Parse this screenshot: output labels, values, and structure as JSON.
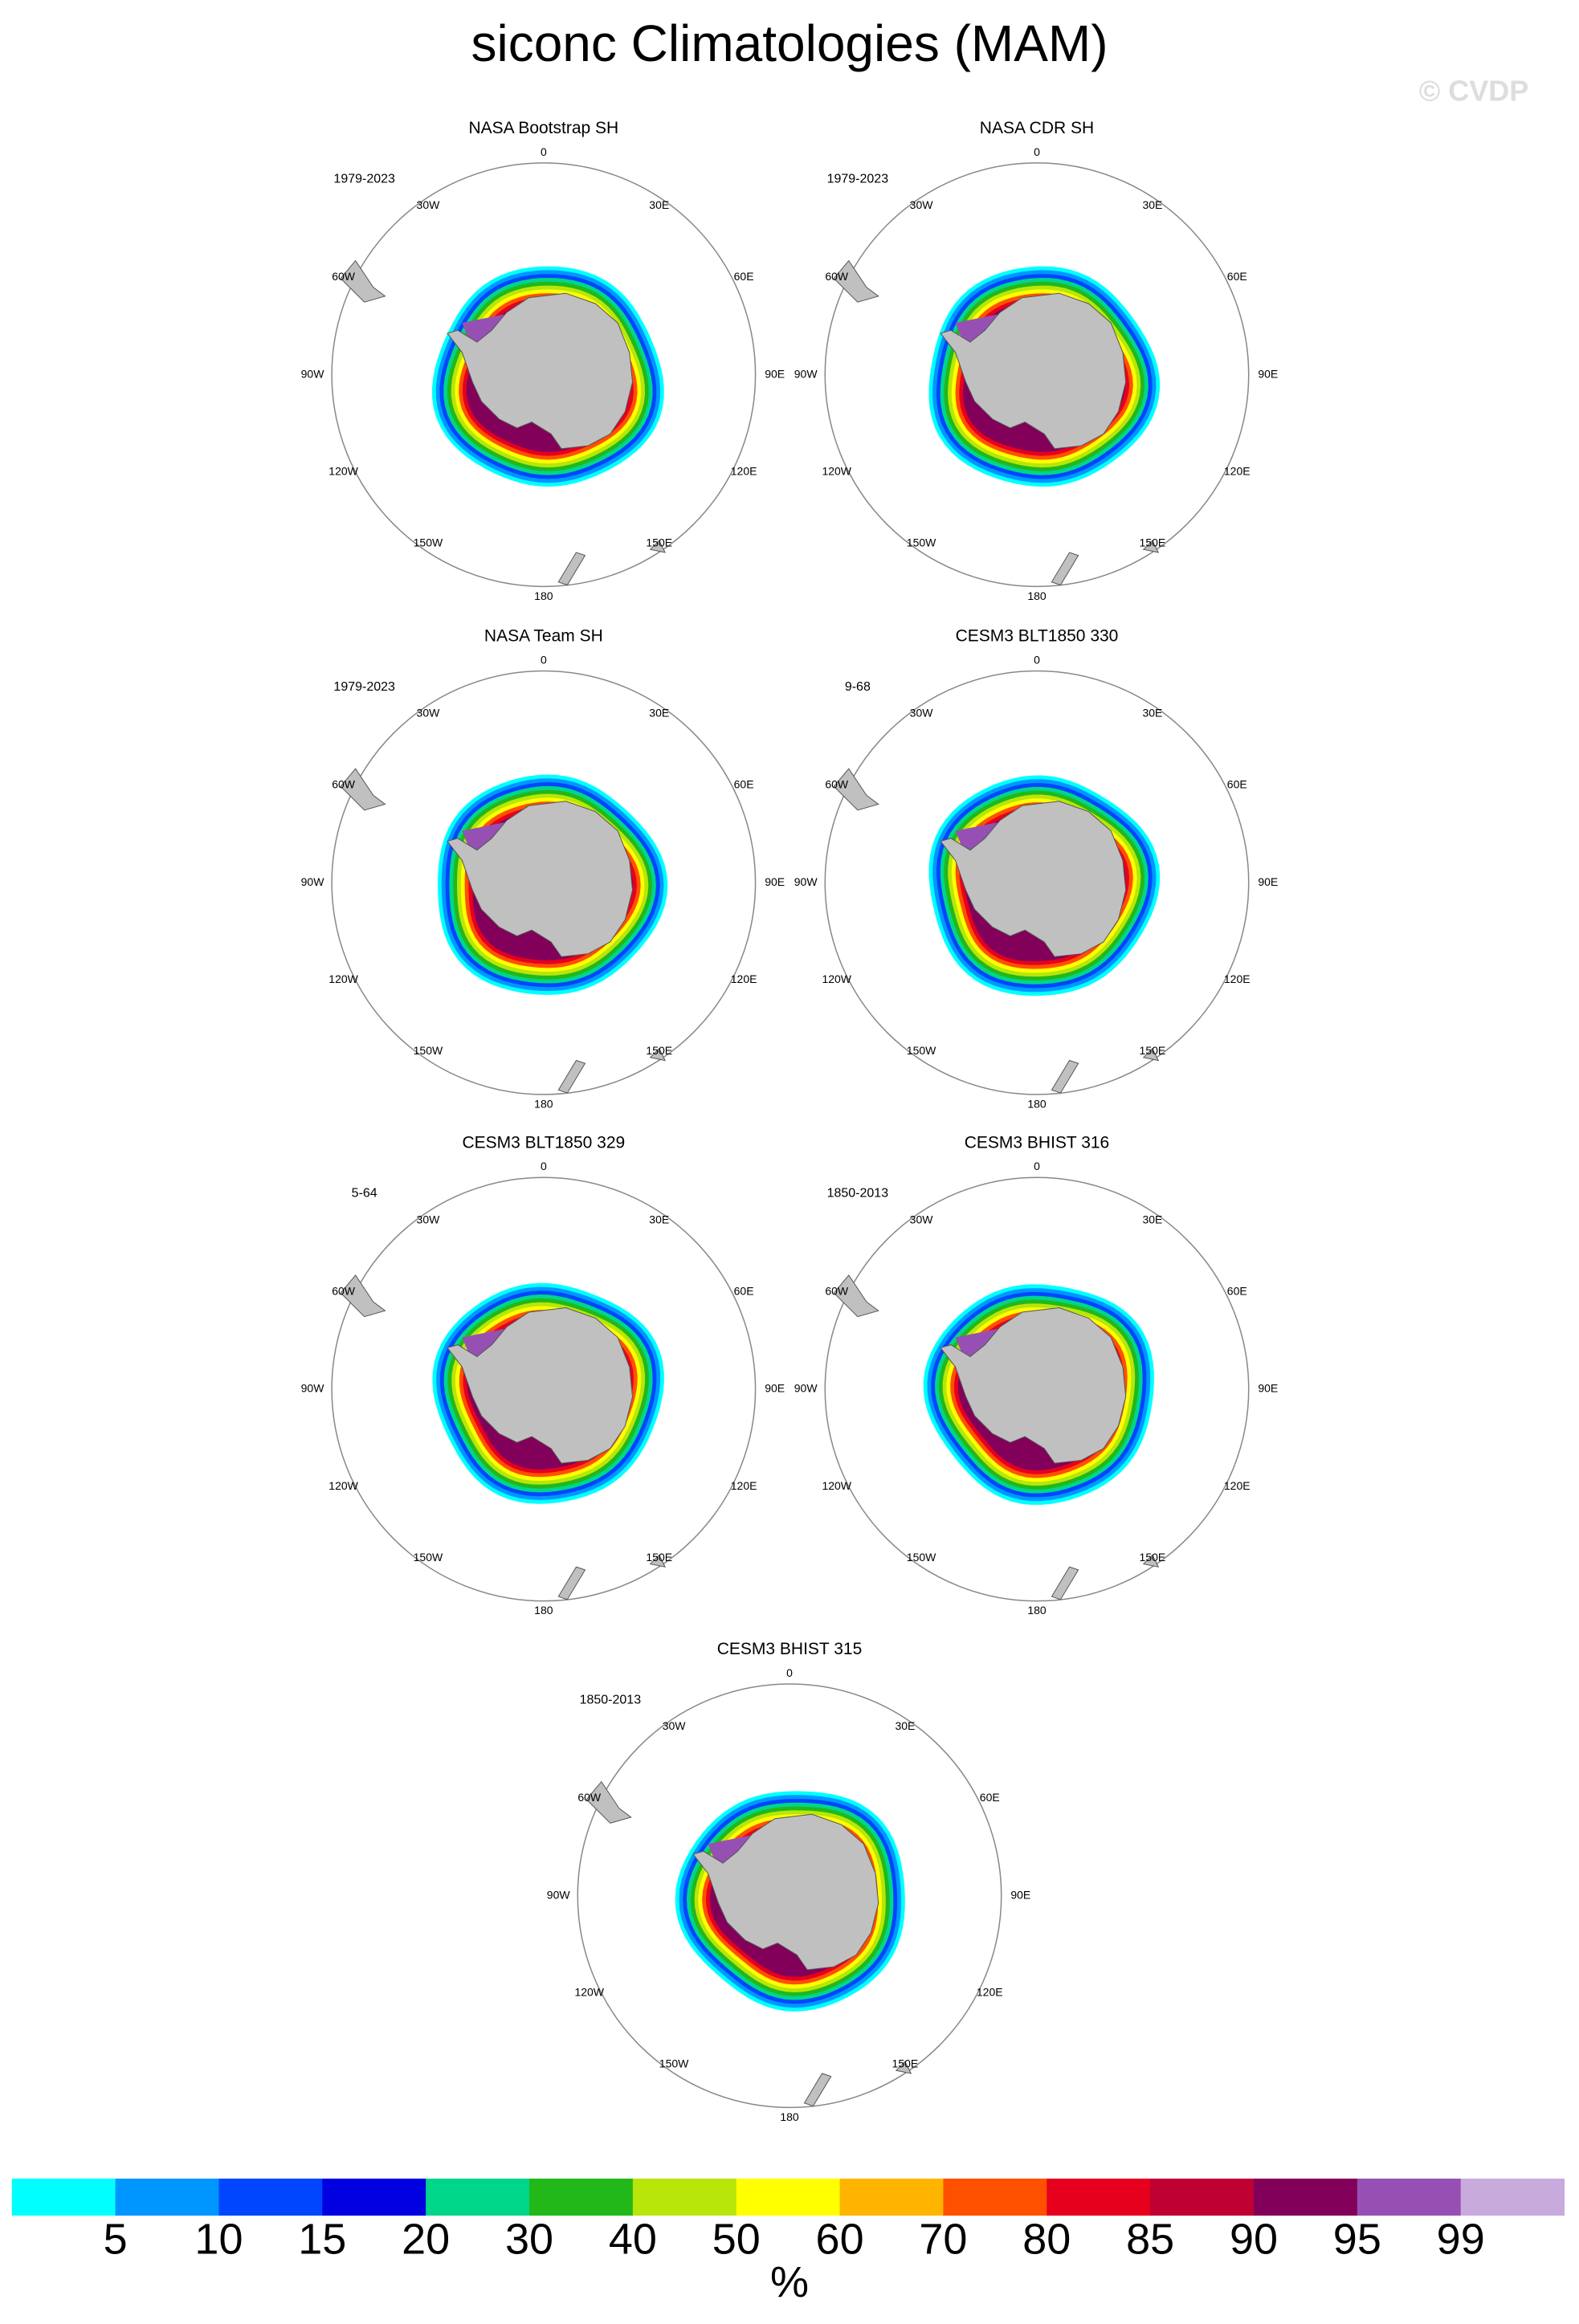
{
  "title": "siconc Climatologies (MAM)",
  "watermark": "© CVDP",
  "lon_labels": [
    "0",
    "30E",
    "60E",
    "90E",
    "120E",
    "150E",
    "180",
    "150W",
    "120W",
    "90W",
    "60W",
    "30W"
  ],
  "panels": [
    {
      "title": "NASA Bootstrap SH",
      "period": "1979-2023"
    },
    {
      "title": "NASA CDR SH",
      "period": "1979-2023"
    },
    {
      "title": "NASA Team SH",
      "period": "1979-2023"
    },
    {
      "title": "CESM3 BLT1850 330",
      "period": "9-68"
    },
    {
      "title": "CESM3 BLT1850 329",
      "period": "5-64"
    },
    {
      "title": "CESM3 BHIST 316",
      "period": "1850-2013"
    },
    {
      "title": "CESM3 BHIST 315",
      "period": "1850-2013"
    }
  ],
  "colorbar": {
    "colors": [
      "#00ffff",
      "#0096ff",
      "#0046ff",
      "#0000e0",
      "#00d68a",
      "#22b81a",
      "#b8e60a",
      "#ffff00",
      "#ffb400",
      "#ff5000",
      "#e6001e",
      "#be0032",
      "#82005a",
      "#9650b4",
      "#c8aadc"
    ],
    "levels": [
      5,
      10,
      15,
      20,
      30,
      40,
      50,
      60,
      70,
      80,
      85,
      90,
      95,
      99
    ],
    "unit": "%"
  }
}
